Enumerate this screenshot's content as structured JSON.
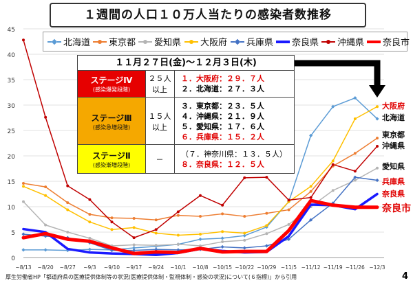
{
  "title": "１週間の人口１０万人当たりの感染者数推移",
  "period": "１１月２７日(金)～１２月３日(木)",
  "stages": [
    {
      "name": "ステージⅣ",
      "sub": "(感染爆発段階)",
      "threshold": [
        "２５人",
        "以上"
      ],
      "bg": "#e60000",
      "fg": "#ffffff",
      "ranks": [
        {
          "text": "１．大阪府：２９．７人",
          "red": true
        },
        {
          "text": "２．北海道：２７．３人",
          "red": false
        }
      ]
    },
    {
      "name": "ステージⅢ",
      "sub": "(感染急増段階)",
      "threshold": [
        "１５人",
        "以上"
      ],
      "bg": "#f5a800",
      "fg": "#111111",
      "ranks": [
        {
          "text": "３．東京都：２３．５人",
          "red": false
        },
        {
          "text": "４．沖縄県：２１．９人",
          "red": false
        },
        {
          "text": "５．愛知県：１７．６人",
          "red": false
        },
        {
          "text": "６．兵庫県：１５．２人",
          "red": true
        }
      ]
    },
    {
      "name": "ステージⅡ",
      "sub": "(感染漸増段階)",
      "threshold": [
        "－"
      ],
      "bg": "#ffff00",
      "fg": "#111111",
      "ranks": [
        {
          "text": "（７．神奈川県：１３．５人）",
          "red": false,
          "plain": true
        },
        {
          "text": "８．奈良県：１２．５人",
          "red": true
        }
      ]
    }
  ],
  "footer": "厚生労働省HP「都道府県の医療提供体制等の状況(医療提供体制・監視体制・感染の状況)について(６指標)」から引用",
  "page_number": "4",
  "chart_data": {
    "type": "line",
    "x": [
      "~8/13",
      "~8/20",
      "~8/27",
      "~9/3",
      "~9/10",
      "~9/17",
      "~9/24",
      "~10/1",
      "~10/8",
      "~10/15",
      "~10/22",
      "~10/29",
      "~11/5",
      "~11/12",
      "~11/19",
      "~11/26",
      "~12/3"
    ],
    "ylim": [
      0,
      45
    ],
    "yticks": [
      0,
      5,
      10,
      15,
      20,
      25,
      30,
      35,
      40,
      45
    ],
    "grid": true,
    "legend_position": "top",
    "series": [
      {
        "name": "北海道",
        "color": "#5b9bd5",
        "style": "dash-diamond",
        "width": 1.5,
        "end_label": "北海道",
        "end_color": "#111111",
        "values": [
          1.5,
          1.5,
          1.4,
          1.6,
          1.5,
          1.9,
          2.2,
          2.6,
          3.6,
          3.8,
          4.3,
          6.0,
          11.0,
          24.0,
          29.7,
          31.4,
          27.3
        ]
      },
      {
        "name": "東京都",
        "color": "#ed7d31",
        "style": "solid-dot",
        "width": 1.5,
        "end_label": "東京都",
        "end_color": "#111111",
        "values": [
          14.6,
          13.9,
          10.8,
          8.5,
          7.8,
          7.7,
          7.4,
          8.3,
          8.1,
          8.6,
          8.1,
          8.7,
          9.4,
          13.0,
          18.0,
          20.5,
          23.5
        ]
      },
      {
        "name": "愛知県",
        "color": "#b4b4b4",
        "style": "solid-dot",
        "width": 1.5,
        "end_label": "愛知県",
        "end_color": "#111111",
        "values": [
          11.0,
          6.4,
          5.0,
          3.8,
          2.3,
          2.5,
          2.4,
          2.6,
          2.3,
          3.1,
          3.4,
          4.7,
          6.5,
          10.0,
          13.2,
          15.2,
          17.6
        ]
      },
      {
        "name": "大阪府",
        "color": "#ffc000",
        "style": "solid-dot",
        "width": 1.5,
        "end_label": "大阪府",
        "end_color": "#e00000",
        "values": [
          14.0,
          12.2,
          9.4,
          7.0,
          5.5,
          5.9,
          4.8,
          4.4,
          4.6,
          5.1,
          4.8,
          6.3,
          11.0,
          14.0,
          19.0,
          27.3,
          29.7
        ]
      },
      {
        "name": "兵庫県",
        "color": "#4472c4",
        "style": "dash-diamond",
        "width": 1.5,
        "end_label": "兵庫県",
        "end_color": "#e00000",
        "values": [
          4.6,
          4.2,
          3.9,
          2.9,
          1.4,
          1.4,
          1.6,
          1.5,
          1.6,
          2.1,
          1.9,
          2.3,
          3.6,
          7.4,
          10.7,
          15.8,
          15.2
        ]
      },
      {
        "name": "奈良県",
        "color": "#1a1aff",
        "style": "solid",
        "width": 3.5,
        "end_label": "奈良県",
        "end_color": "#e00000",
        "values": [
          5.6,
          5.0,
          1.7,
          1.0,
          0.8,
          0.7,
          0.5,
          0.9,
          1.7,
          1.3,
          1.0,
          1.1,
          4.2,
          10.4,
          10.3,
          9.5,
          12.5
        ]
      },
      {
        "name": "沖縄県",
        "color": "#c00000",
        "style": "solid-dot",
        "width": 1.5,
        "end_label": "沖縄県",
        "end_color": "#111111",
        "values": [
          42.8,
          27.6,
          14.1,
          11.4,
          7.0,
          3.9,
          5.5,
          9.0,
          12.2,
          10.3,
          15.7,
          15.8,
          11.3,
          11.8,
          18.3,
          17.0,
          21.9
        ]
      },
      {
        "name": "奈良市",
        "color": "#ff0000",
        "style": "solid",
        "width": 5,
        "end_label": "奈良市",
        "end_color": "#e00000",
        "values": [
          3.9,
          4.7,
          3.6,
          3.2,
          1.9,
          0.8,
          1.1,
          1.0,
          1.8,
          1.1,
          1.2,
          1.2,
          5.3,
          11.2,
          10.3,
          9.9,
          9.9
        ]
      }
    ]
  }
}
